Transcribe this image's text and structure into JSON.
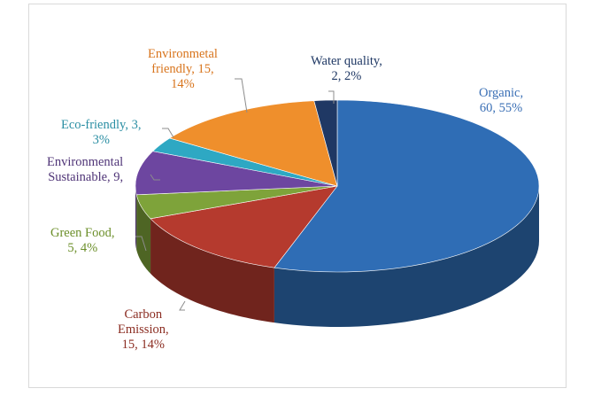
{
  "chart_data": {
    "type": "pie",
    "style": "3d",
    "series": [
      {
        "name": "Organic",
        "value": 60,
        "percent": "55%",
        "label_value": "60, 55%",
        "color": "#4472c4"
      },
      {
        "name": "Carbon Emission,",
        "value": 15,
        "percent": "14%",
        "label_value": "15, 14%",
        "color": "#c0392b"
      },
      {
        "name": "Green Food,",
        "value": 5,
        "percent": "4%",
        "label_value": "5, 4%",
        "color": "#8db33e"
      },
      {
        "name": "Environmental Sustainable,",
        "value": 9,
        "percent": "",
        "label_value": "9,",
        "color": "#7a4fa0"
      },
      {
        "name": "Eco-friendly, 3,",
        "value": 3,
        "percent": "3%",
        "label_value": "3%",
        "color": "#31acc6"
      },
      {
        "name": "Environmetal friendly, 15,",
        "value": 15,
        "percent": "14%",
        "label_value": "14%",
        "color": "#f0902a"
      },
      {
        "name": "Water quality,",
        "value": 2,
        "percent": "2%",
        "label_value": "2, 2%",
        "color": "#1f3864"
      }
    ],
    "legend": "none",
    "data_labels": "outside-with-leader-lines"
  },
  "labels": {
    "organic_l1": "Organic,",
    "organic_l2": "60, 55%",
    "carbon_l1": "Carbon",
    "carbon_l2": "Emission,",
    "carbon_l3": "15, 14%",
    "green_l1": "Green Food,",
    "green_l2": "5, 4%",
    "envsus_l1": "Environmental",
    "envsus_l2": "Sustainable, 9,",
    "eco_l1": "Eco-friendly, 3,",
    "eco_l2": "3%",
    "envfr_l1": "Environmetal",
    "envfr_l2": "friendly, 15,",
    "envfr_l3": "14%",
    "water_l1": "Water quality,",
    "water_l2": "2, 2%"
  },
  "colors": {
    "organic": "#2f6db5",
    "carbon": "#b53a2e",
    "green": "#7ea33a",
    "envsus": "#6d46a0",
    "eco": "#2ea8c3",
    "envfr": "#ef8f2c",
    "water": "#1f3864",
    "organic_text": "#3a6fb5",
    "carbon_text": "#8b2d22",
    "green_text": "#6c8f2a",
    "envsus_text": "#4f3477",
    "eco_text": "#2a8ea3",
    "envfr_text": "#d8741c",
    "water_text": "#1f3864"
  }
}
